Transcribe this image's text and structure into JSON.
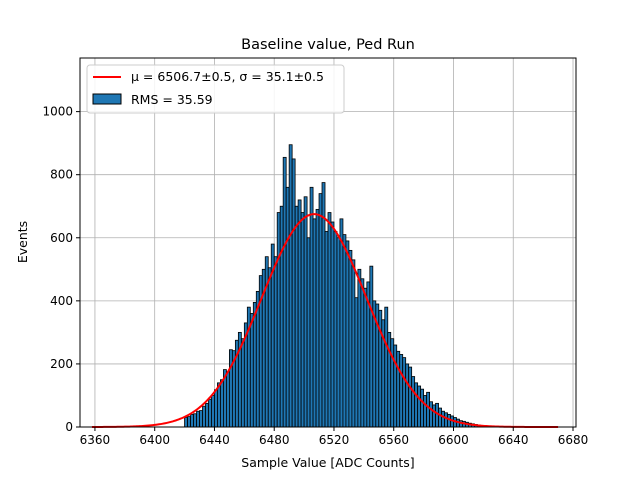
{
  "chart_data": {
    "type": "bar",
    "title": "Baseline value, Ped Run",
    "xlabel": "Sample Value [ADC Counts]",
    "ylabel": "Events",
    "xlim": [
      6350,
      6682
    ],
    "ylim": [
      0,
      1170
    ],
    "xticks": [
      6360,
      6400,
      6440,
      6480,
      6520,
      6560,
      6600,
      6640,
      6680
    ],
    "yticks": [
      0,
      200,
      400,
      600,
      800,
      1000
    ],
    "grid": true,
    "legend_placement": "top-left",
    "colors": {
      "histogram": "#1f77b4",
      "edge": "#000000",
      "fit": "#ff0000"
    },
    "fit": {
      "label": "μ = 6506.7±0.5, σ = 35.1±0.5",
      "mu": 6506.7,
      "sigma": 35.1,
      "amplitude": 675,
      "x_range": [
        6358,
        6670
      ]
    },
    "histogram": {
      "label": "RMS = 35.59",
      "bin_width": 2,
      "bins": [
        {
          "x": 6420,
          "y": 30
        },
        {
          "x": 6422,
          "y": 33
        },
        {
          "x": 6424,
          "y": 40
        },
        {
          "x": 6426,
          "y": 42
        },
        {
          "x": 6428,
          "y": 50
        },
        {
          "x": 6430,
          "y": 52
        },
        {
          "x": 6432,
          "y": 66
        },
        {
          "x": 6434,
          "y": 75
        },
        {
          "x": 6436,
          "y": 88
        },
        {
          "x": 6438,
          "y": 100
        },
        {
          "x": 6440,
          "y": 118
        },
        {
          "x": 6442,
          "y": 140
        },
        {
          "x": 6444,
          "y": 150
        },
        {
          "x": 6446,
          "y": 182
        },
        {
          "x": 6448,
          "y": 175
        },
        {
          "x": 6450,
          "y": 245
        },
        {
          "x": 6452,
          "y": 242
        },
        {
          "x": 6454,
          "y": 275
        },
        {
          "x": 6456,
          "y": 300
        },
        {
          "x": 6458,
          "y": 280
        },
        {
          "x": 6460,
          "y": 330
        },
        {
          "x": 6462,
          "y": 380
        },
        {
          "x": 6464,
          "y": 360
        },
        {
          "x": 6466,
          "y": 395
        },
        {
          "x": 6468,
          "y": 430
        },
        {
          "x": 6470,
          "y": 480
        },
        {
          "x": 6472,
          "y": 500
        },
        {
          "x": 6474,
          "y": 540
        },
        {
          "x": 6476,
          "y": 505
        },
        {
          "x": 6478,
          "y": 580
        },
        {
          "x": 6480,
          "y": 540
        },
        {
          "x": 6482,
          "y": 680
        },
        {
          "x": 6484,
          "y": 700
        },
        {
          "x": 6486,
          "y": 855
        },
        {
          "x": 6488,
          "y": 760
        },
        {
          "x": 6490,
          "y": 895
        },
        {
          "x": 6492,
          "y": 850
        },
        {
          "x": 6494,
          "y": 700
        },
        {
          "x": 6496,
          "y": 720
        },
        {
          "x": 6498,
          "y": 680
        },
        {
          "x": 6500,
          "y": 730
        },
        {
          "x": 6502,
          "y": 600
        },
        {
          "x": 6504,
          "y": 760
        },
        {
          "x": 6506,
          "y": 660
        },
        {
          "x": 6508,
          "y": 690
        },
        {
          "x": 6510,
          "y": 740
        },
        {
          "x": 6512,
          "y": 775
        },
        {
          "x": 6514,
          "y": 620
        },
        {
          "x": 6516,
          "y": 680
        },
        {
          "x": 6518,
          "y": 650
        },
        {
          "x": 6520,
          "y": 620
        },
        {
          "x": 6522,
          "y": 600
        },
        {
          "x": 6524,
          "y": 660
        },
        {
          "x": 6526,
          "y": 610
        },
        {
          "x": 6528,
          "y": 590
        },
        {
          "x": 6530,
          "y": 560
        },
        {
          "x": 6532,
          "y": 530
        },
        {
          "x": 6534,
          "y": 410
        },
        {
          "x": 6536,
          "y": 500
        },
        {
          "x": 6538,
          "y": 470
        },
        {
          "x": 6540,
          "y": 440
        },
        {
          "x": 6542,
          "y": 460
        },
        {
          "x": 6544,
          "y": 510
        },
        {
          "x": 6546,
          "y": 400
        },
        {
          "x": 6548,
          "y": 390
        },
        {
          "x": 6550,
          "y": 370
        },
        {
          "x": 6552,
          "y": 340
        },
        {
          "x": 6554,
          "y": 380
        },
        {
          "x": 6556,
          "y": 300
        },
        {
          "x": 6558,
          "y": 280
        },
        {
          "x": 6560,
          "y": 260
        },
        {
          "x": 6562,
          "y": 240
        },
        {
          "x": 6564,
          "y": 230
        },
        {
          "x": 6566,
          "y": 220
        },
        {
          "x": 6568,
          "y": 200
        },
        {
          "x": 6570,
          "y": 190
        },
        {
          "x": 6572,
          "y": 160
        },
        {
          "x": 6574,
          "y": 140
        },
        {
          "x": 6576,
          "y": 130
        },
        {
          "x": 6578,
          "y": 120
        },
        {
          "x": 6580,
          "y": 100
        },
        {
          "x": 6582,
          "y": 110
        },
        {
          "x": 6584,
          "y": 80
        },
        {
          "x": 6586,
          "y": 70
        },
        {
          "x": 6588,
          "y": 75
        },
        {
          "x": 6590,
          "y": 60
        },
        {
          "x": 6592,
          "y": 50
        },
        {
          "x": 6594,
          "y": 45
        },
        {
          "x": 6596,
          "y": 40
        },
        {
          "x": 6598,
          "y": 35
        },
        {
          "x": 6600,
          "y": 30
        },
        {
          "x": 6602,
          "y": 25
        },
        {
          "x": 6604,
          "y": 20
        },
        {
          "x": 6606,
          "y": 18
        },
        {
          "x": 6608,
          "y": 15
        },
        {
          "x": 6610,
          "y": 12
        },
        {
          "x": 6612,
          "y": 10
        },
        {
          "x": 6614,
          "y": 8
        },
        {
          "x": 6616,
          "y": 6
        },
        {
          "x": 6618,
          "y": 5
        },
        {
          "x": 6620,
          "y": 4
        }
      ]
    }
  }
}
